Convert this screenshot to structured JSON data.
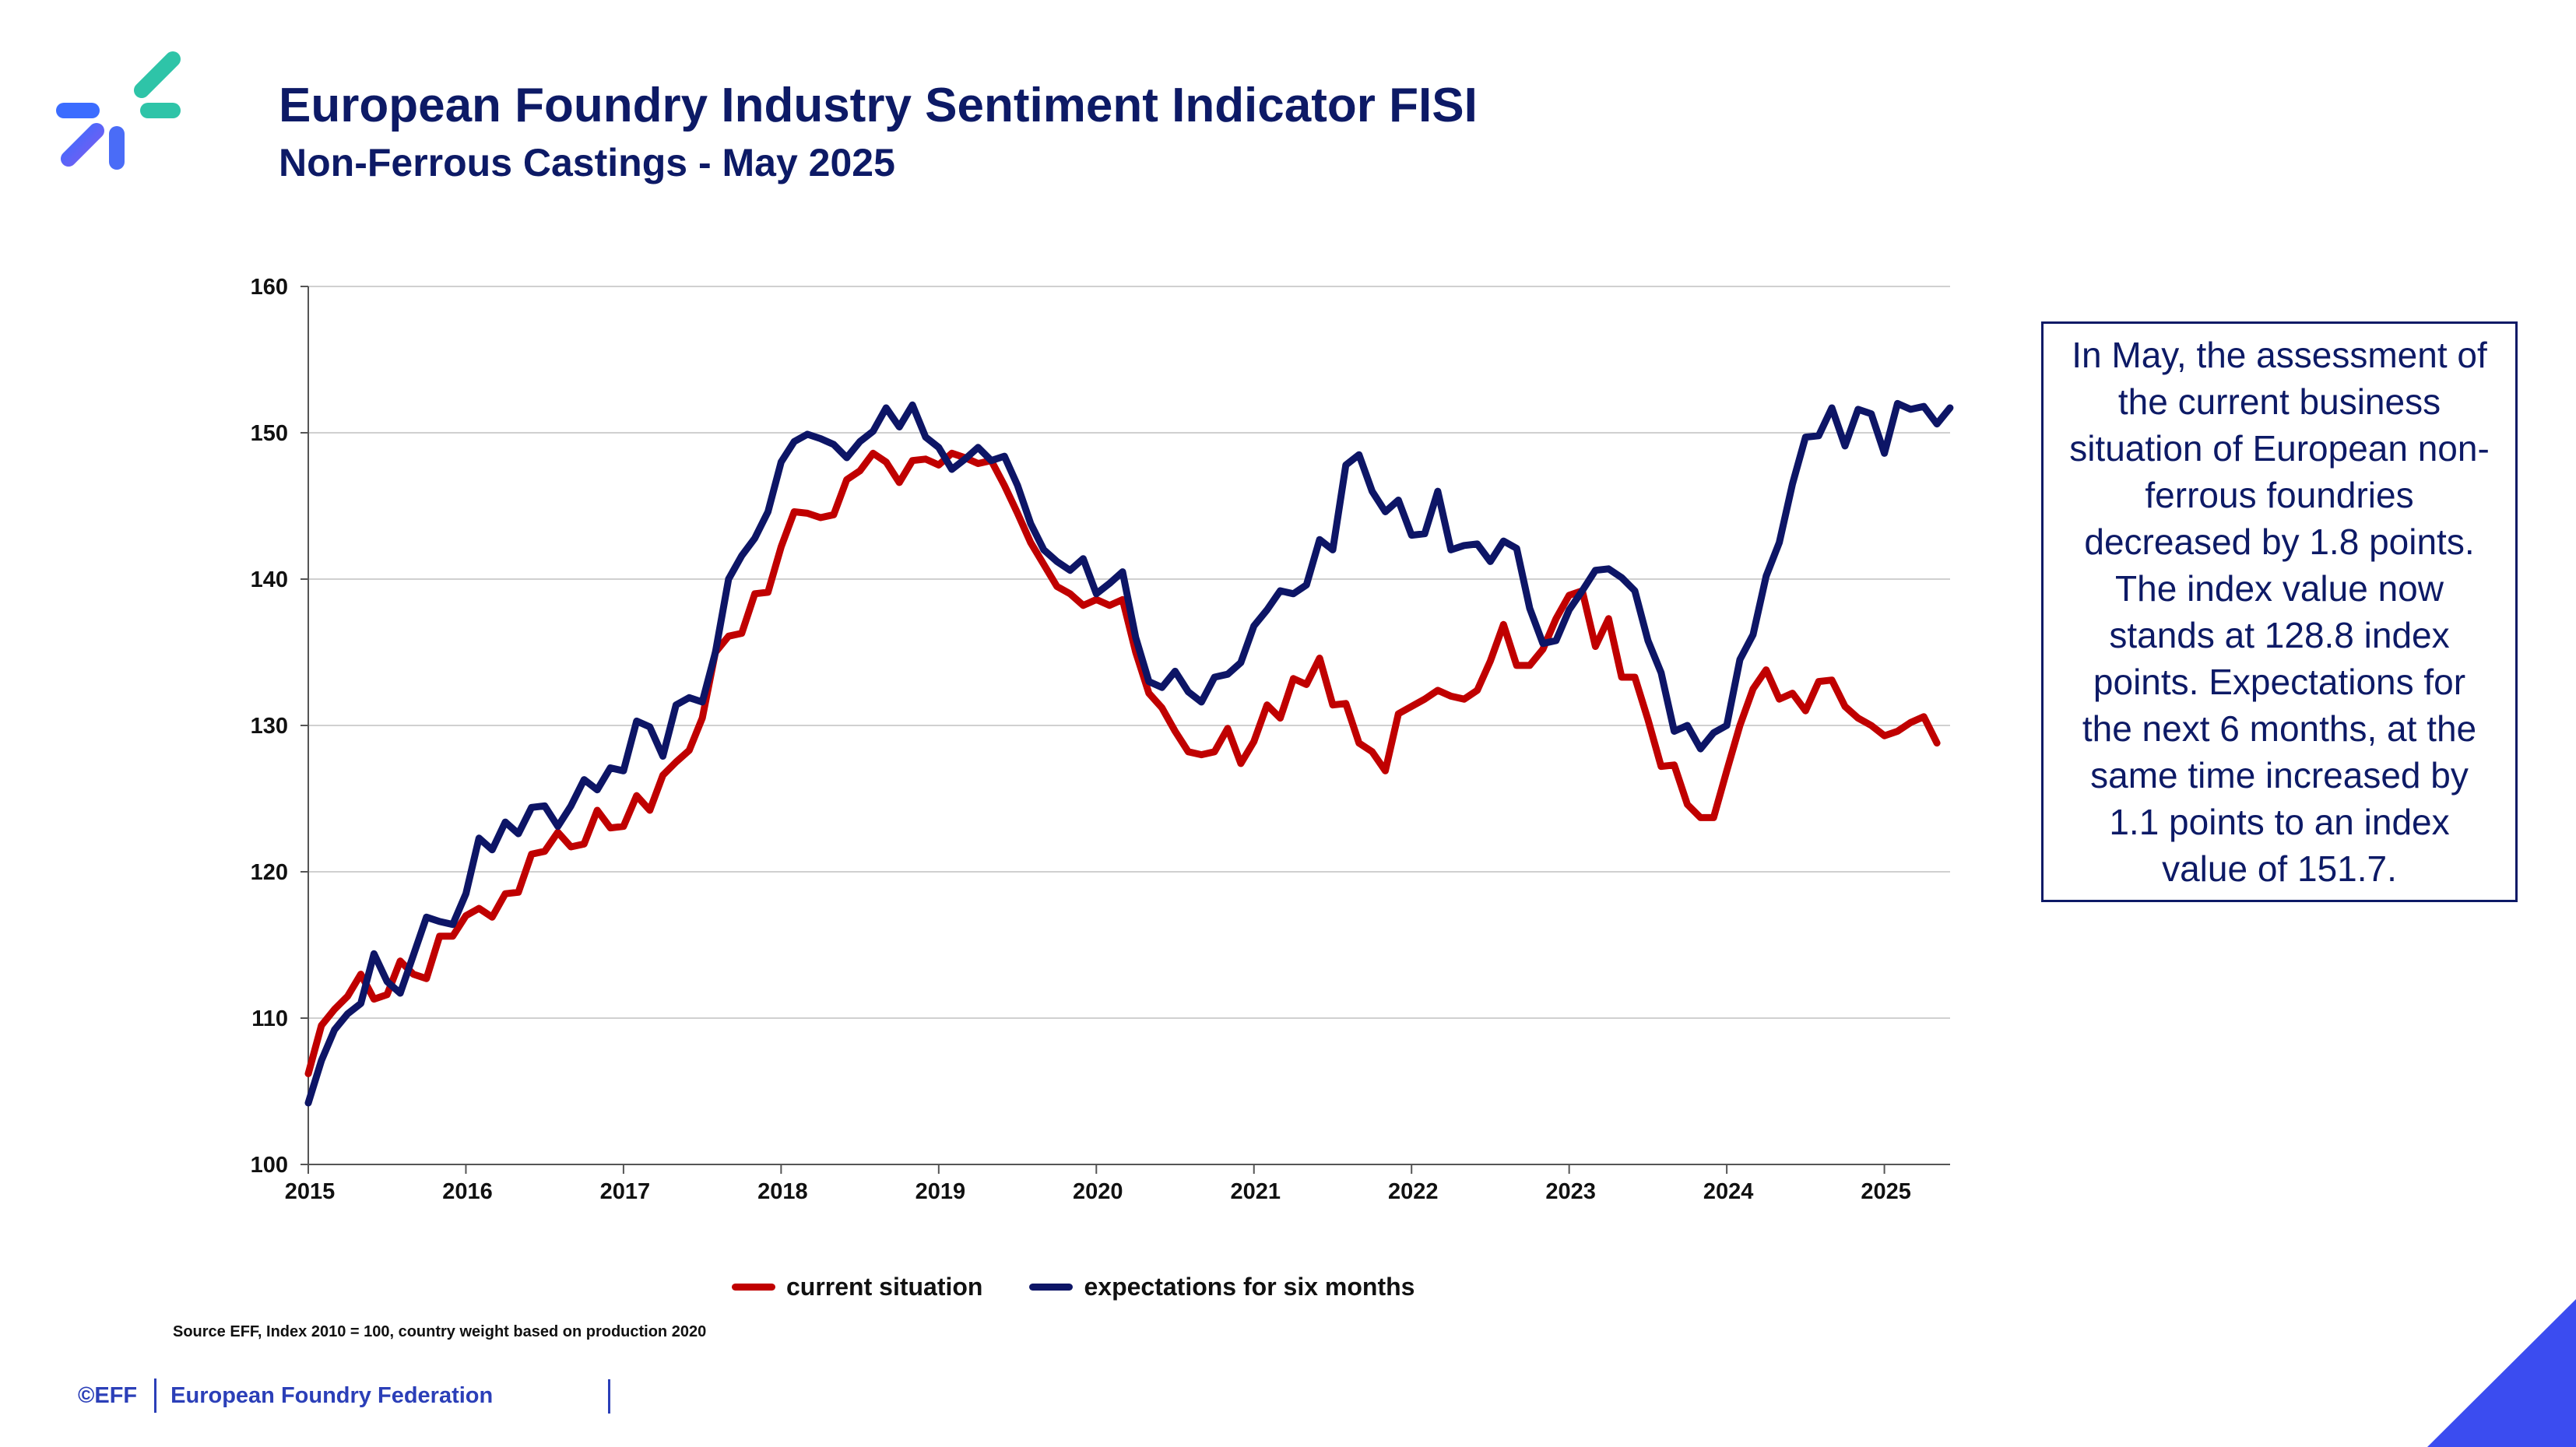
{
  "header": {
    "title": "European Foundry Industry Sentiment Indicator FISI",
    "subtitle": "Non-Ferrous Castings - May 2025"
  },
  "logo": {
    "icon": "eff-logo-icon",
    "colors": [
      "#2ec4a8",
      "#3b6cff",
      "#7b5cf0"
    ]
  },
  "note": {
    "text": "In May, the assessment of the current business situation of European non-ferrous foundries decreased by 1.8 points. The index value now stands at 128.8 index points. Expectations for the next 6 months, at the same time increased by 1.1 points to an index value of 151.7."
  },
  "source": "Source EFF, Index 2010 = 100, country weight based on production 2020",
  "footer": {
    "copyright": "©EFF",
    "org": "European Foundry Federation"
  },
  "colors": {
    "current": "#c00000",
    "expectations": "#0d1566",
    "accent": "#3b4cf0",
    "grid": "#d0d0d0"
  },
  "chart_data": {
    "type": "line",
    "title": "",
    "xlabel": "",
    "ylabel": "",
    "ylim": [
      100,
      160
    ],
    "yticks": [
      100,
      110,
      120,
      130,
      140,
      150,
      160
    ],
    "xlim": [
      2015,
      2025.417
    ],
    "xticks": [
      2015,
      2016,
      2017,
      2018,
      2019,
      2020,
      2021,
      2022,
      2023,
      2024,
      2025
    ],
    "grid": "horizontal",
    "legend_position": "bottom",
    "start": "2015-01",
    "series": [
      {
        "name": "current situation",
        "color": "#c00000",
        "values": [
          106.2,
          109.5,
          110.6,
          111.5,
          113.0,
          111.3,
          111.6,
          113.9,
          113.0,
          112.7,
          115.6,
          115.6,
          117.0,
          117.5,
          116.9,
          118.5,
          118.6,
          121.2,
          121.4,
          122.7,
          121.7,
          121.9,
          124.2,
          123.0,
          123.1,
          125.2,
          124.2,
          126.6,
          127.5,
          128.3,
          130.5,
          135.0,
          136.1,
          136.3,
          139.0,
          139.1,
          142.2,
          144.6,
          144.5,
          144.2,
          144.4,
          146.8,
          147.4,
          148.6,
          148.0,
          146.6,
          148.1,
          148.2,
          147.8,
          148.6,
          148.3,
          147.9,
          148.1,
          146.4,
          144.5,
          142.5,
          141.0,
          139.5,
          139.0,
          138.2,
          138.6,
          138.2,
          138.6,
          135.0,
          132.2,
          131.2,
          129.6,
          128.2,
          128.0,
          128.2,
          129.8,
          127.4,
          128.9,
          131.4,
          130.5,
          133.2,
          132.8,
          134.6,
          131.4,
          131.5,
          128.8,
          128.2,
          126.9,
          130.8,
          131.3,
          131.8,
          132.4,
          132.0,
          131.8,
          132.4,
          134.4,
          136.9,
          134.1,
          134.1,
          135.2,
          137.3,
          138.9,
          139.2,
          135.4,
          137.3,
          133.3,
          133.3,
          130.4,
          127.2,
          127.3,
          124.6,
          123.7,
          123.7,
          126.9,
          130.0,
          132.5,
          133.8,
          131.8,
          132.2,
          131.0,
          133.0,
          133.1,
          131.3,
          130.5,
          130.0,
          129.3,
          129.6,
          130.2,
          130.6,
          128.8
        ]
      },
      {
        "name": "expectations for six months",
        "color": "#0d1566",
        "values": [
          104.2,
          107.1,
          109.2,
          110.3,
          111.0,
          114.4,
          112.5,
          111.7,
          114.3,
          116.9,
          116.6,
          116.4,
          118.5,
          122.3,
          121.5,
          123.4,
          122.6,
          124.4,
          124.5,
          123.1,
          124.5,
          126.3,
          125.6,
          127.1,
          126.9,
          130.3,
          129.9,
          127.9,
          131.4,
          131.9,
          131.6,
          135.0,
          140.0,
          141.6,
          142.8,
          144.6,
          148.0,
          149.4,
          149.9,
          149.6,
          149.2,
          148.3,
          149.4,
          150.1,
          151.7,
          150.4,
          151.9,
          149.7,
          149.0,
          147.5,
          148.2,
          149.0,
          148.1,
          148.4,
          146.4,
          143.8,
          142.0,
          141.2,
          140.6,
          141.4,
          139.0,
          139.7,
          140.5,
          136.0,
          133.0,
          132.6,
          133.7,
          132.3,
          131.6,
          133.3,
          133.5,
          134.3,
          136.8,
          137.9,
          139.2,
          139.0,
          139.6,
          142.7,
          142.0,
          147.8,
          148.5,
          146.0,
          144.6,
          145.4,
          143.0,
          143.1,
          146.0,
          142.0,
          142.3,
          142.4,
          141.2,
          142.6,
          142.1,
          138.0,
          135.6,
          135.8,
          137.9,
          139.2,
          140.6,
          140.7,
          140.1,
          139.2,
          135.8,
          133.6,
          129.6,
          130.0,
          128.4,
          129.5,
          130.0,
          134.5,
          136.2,
          140.2,
          142.5,
          146.5,
          149.7,
          149.8,
          151.7,
          149.1,
          151.6,
          151.3,
          148.6,
          152.0,
          151.6,
          151.8,
          150.6,
          151.7
        ]
      }
    ]
  }
}
